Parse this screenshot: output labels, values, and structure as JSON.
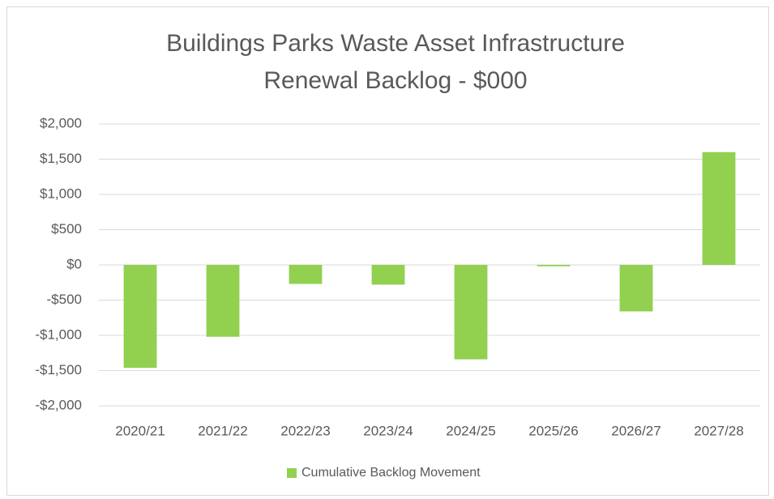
{
  "chart_data": {
    "type": "bar",
    "title": [
      "Buildings Parks Waste Asset Infrastructure",
      "Renewal Backlog - $000"
    ],
    "categories": [
      "2020/21",
      "2021/22",
      "2022/23",
      "2023/24",
      "2024/25",
      "2025/26",
      "2026/27",
      "2027/28"
    ],
    "series": [
      {
        "name": "Cumulative Backlog Movement",
        "color": "#92d050",
        "values": [
          -1460,
          -1020,
          -270,
          -280,
          -1340,
          -20,
          -660,
          1600
        ]
      }
    ],
    "ylim": [
      -2000,
      2000
    ],
    "yticks": [
      {
        "value": -2000,
        "label": "-$2,000"
      },
      {
        "value": -1500,
        "label": "-$1,500"
      },
      {
        "value": -1000,
        "label": "-$1,000"
      },
      {
        "value": -500,
        "label": "-$500"
      },
      {
        "value": 0,
        "label": "$0"
      },
      {
        "value": 500,
        "label": "$500"
      },
      {
        "value": 1000,
        "label": "$1,000"
      },
      {
        "value": 1500,
        "label": "$1,500"
      },
      {
        "value": 2000,
        "label": "$2,000"
      }
    ],
    "grid": true,
    "legend": "bottom"
  }
}
